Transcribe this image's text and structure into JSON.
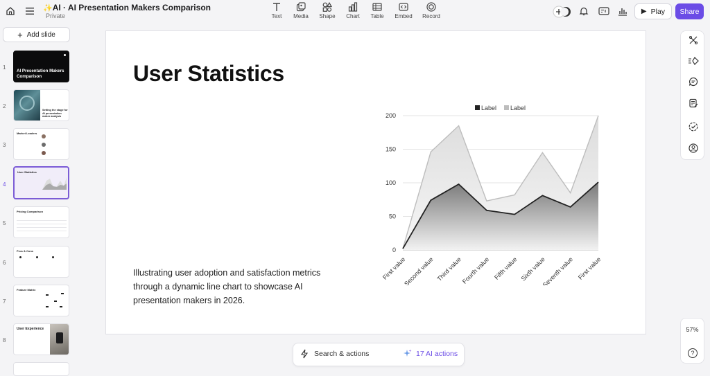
{
  "header": {
    "title": "AI · AI Presentation Makers Comparison",
    "subtitle": "Private",
    "tools": [
      {
        "label": "Text",
        "icon": "text-icon"
      },
      {
        "label": "Media",
        "icon": "media-icon"
      },
      {
        "label": "Shape",
        "icon": "shape-icon"
      },
      {
        "label": "Chart",
        "icon": "chart-icon"
      },
      {
        "label": "Table",
        "icon": "table-icon"
      },
      {
        "label": "Embed",
        "icon": "embed-icon"
      },
      {
        "label": "Record",
        "icon": "record-icon"
      }
    ],
    "play_label": "Play",
    "share_label": "Share",
    "accent": "#6b4ce6"
  },
  "sidebar": {
    "add_slide_label": "Add slide",
    "slides": [
      {
        "num": "1",
        "title": "AI Presentation Makers Comparison"
      },
      {
        "num": "2",
        "title": "Setting the stage for AI presentation maker analysis"
      },
      {
        "num": "3",
        "title": "Market Leaders"
      },
      {
        "num": "4",
        "title": "User Statistics"
      },
      {
        "num": "5",
        "title": "Pricing Comparison"
      },
      {
        "num": "6",
        "title": "Pros & Cons"
      },
      {
        "num": "7",
        "title": "Feature Matrix"
      },
      {
        "num": "8",
        "title": "User Experience"
      }
    ],
    "selected": "4"
  },
  "slide": {
    "title": "User Statistics",
    "description": "Illustrating user adoption and satisfaction metrics through a dynamic line chart to showcase AI presentation makers in 2026."
  },
  "chart_data": {
    "type": "area",
    "categories": [
      "First value",
      "Second value",
      "Third value",
      "Fourth value",
      "Fifth value",
      "Sixth value",
      "Seventh value",
      "First value"
    ],
    "series": [
      {
        "name": "Label",
        "values": [
          2,
          74,
          98,
          59,
          53,
          81,
          64,
          101
        ],
        "color": "#222222"
      },
      {
        "name": "Label",
        "values": [
          2,
          146,
          185,
          73,
          82,
          145,
          85,
          200
        ],
        "color": "#bdbdbd"
      }
    ],
    "yticks": [
      0,
      50,
      100,
      150,
      200
    ],
    "ylim": [
      0,
      200
    ],
    "legend": "top",
    "grid": true
  },
  "bottombar": {
    "search_label": "Search & actions",
    "ai_label": "17 AI actions"
  },
  "zoom": {
    "level": "57%",
    "help": "?"
  }
}
